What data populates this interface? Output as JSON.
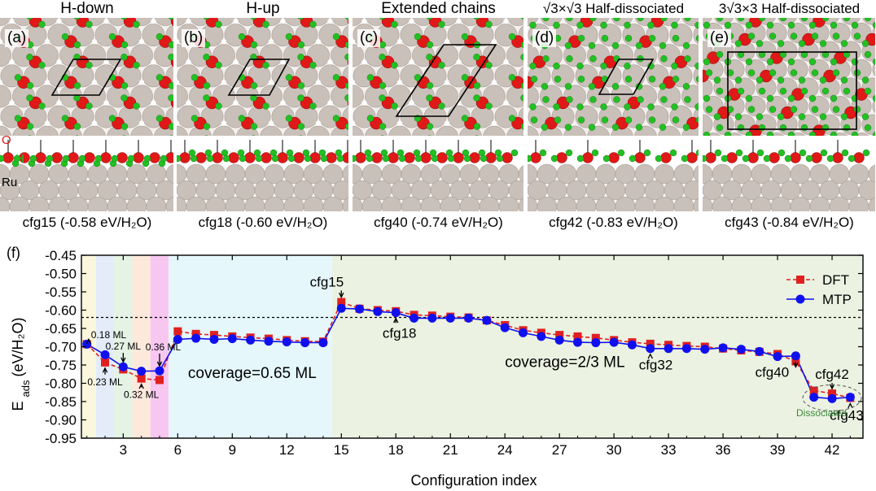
{
  "panels": [
    {
      "letter": "(a)",
      "title": "H-down",
      "caption": "cfg15 (-0.58 eV/H₂O)"
    },
    {
      "letter": "(b)",
      "title": "H-up",
      "caption": "cfg18 (-0.60 eV/H₂O)"
    },
    {
      "letter": "(c)",
      "title": "Extended chains",
      "caption": "cfg40 (-0.74 eV/H₂O)"
    },
    {
      "letter": "(d)",
      "title": "√3×√3 Half-dissociated",
      "caption": "cfg42 (-0.83 eV/H₂O)"
    },
    {
      "letter": "(e)",
      "title": "3√3×3 Half-dissociated",
      "caption": "cfg43 (-0.84 eV/H₂O)"
    }
  ],
  "atom_labels": {
    "o": "O",
    "h": "H",
    "ru": "Ru"
  },
  "colors": {
    "ru": "#c9c0b9",
    "o": "#e01818",
    "h": "#22c022",
    "dft": "#e02020",
    "mtp": "#1010ee"
  },
  "chart_data": {
    "type": "line",
    "panel_label": "(f)",
    "xlabel": "Configuration index",
    "ylabel": "E_ads (eV/H₂O)",
    "xlim": [
      0.7,
      43.7
    ],
    "ylim": [
      -0.95,
      -0.45
    ],
    "xticks": [
      3,
      6,
      9,
      12,
      15,
      18,
      21,
      24,
      27,
      30,
      33,
      36,
      39,
      42
    ],
    "yticks": [
      -0.45,
      -0.5,
      -0.55,
      -0.6,
      -0.65,
      -0.7,
      -0.75,
      -0.8,
      -0.85,
      -0.9,
      -0.95
    ],
    "x": [
      1,
      2,
      3,
      4,
      5,
      6,
      7,
      8,
      9,
      10,
      11,
      12,
      13,
      14,
      15,
      16,
      17,
      18,
      19,
      20,
      21,
      22,
      23,
      24,
      25,
      26,
      27,
      28,
      29,
      30,
      31,
      32,
      33,
      34,
      35,
      36,
      37,
      38,
      39,
      40,
      41,
      42,
      43
    ],
    "series": [
      {
        "name": "DFT",
        "values": [
          -0.693,
          -0.743,
          -0.762,
          -0.787,
          -0.791,
          -0.658,
          -0.665,
          -0.668,
          -0.672,
          -0.675,
          -0.678,
          -0.682,
          -0.685,
          -0.686,
          -0.578,
          -0.596,
          -0.6,
          -0.603,
          -0.613,
          -0.615,
          -0.618,
          -0.62,
          -0.628,
          -0.641,
          -0.655,
          -0.662,
          -0.668,
          -0.672,
          -0.676,
          -0.682,
          -0.688,
          -0.692,
          -0.695,
          -0.698,
          -0.7,
          -0.705,
          -0.71,
          -0.714,
          -0.72,
          -0.74,
          -0.82,
          -0.828,
          -0.84
        ]
      },
      {
        "name": "MTP",
        "values": [
          -0.693,
          -0.722,
          -0.755,
          -0.767,
          -0.766,
          -0.68,
          -0.677,
          -0.68,
          -0.678,
          -0.682,
          -0.685,
          -0.687,
          -0.689,
          -0.689,
          -0.595,
          -0.597,
          -0.604,
          -0.607,
          -0.622,
          -0.622,
          -0.622,
          -0.622,
          -0.628,
          -0.648,
          -0.662,
          -0.672,
          -0.682,
          -0.688,
          -0.689,
          -0.688,
          -0.695,
          -0.705,
          -0.705,
          -0.705,
          -0.707,
          -0.703,
          -0.707,
          -0.713,
          -0.727,
          -0.725,
          -0.838,
          -0.842,
          -0.838
        ]
      }
    ],
    "reference_line": -0.62,
    "regions": [
      {
        "x0": 0.7,
        "x1": 1.5,
        "color": "#fbf7dc"
      },
      {
        "x0": 1.5,
        "x1": 2.5,
        "color": "#e4ecf9"
      },
      {
        "x0": 2.5,
        "x1": 3.5,
        "color": "#e4f3e4"
      },
      {
        "x0": 3.5,
        "x1": 4.5,
        "color": "#fde9dc"
      },
      {
        "x0": 4.5,
        "x1": 5.5,
        "color": "#f7c7f1"
      },
      {
        "x0": 5.5,
        "x1": 14.5,
        "color": "#e5f7fb"
      },
      {
        "x0": 14.5,
        "x1": 43.7,
        "color": "#ebf2e1"
      }
    ],
    "region_labels": [
      {
        "text": "coverage=0.65 ML",
        "x": 10.1,
        "y": -0.785
      },
      {
        "text": "coverage=2/3 ML",
        "x": 27.3,
        "y": -0.755
      }
    ],
    "annotations": [
      {
        "text": "cfg15",
        "x": 15,
        "y": -0.578,
        "tx": 14.2,
        "ty": -0.535
      },
      {
        "text": "cfg18",
        "x": 18,
        "y": -0.607,
        "tx": 18.2,
        "ty": -0.675
      },
      {
        "text": "cfg32",
        "x": 32,
        "y": -0.705,
        "tx": 32.3,
        "ty": -0.762
      },
      {
        "text": "cfg40",
        "x": 40,
        "y": -0.74,
        "tx": 38.7,
        "ty": -0.782
      },
      {
        "text": "cfg42",
        "x": 42,
        "y": -0.828,
        "tx": 42,
        "ty": -0.788
      },
      {
        "text": "cfg43",
        "x": 43,
        "y": -0.84,
        "tx": 42.8,
        "ty": -0.9
      }
    ],
    "coverage_labels": [
      {
        "text": "0.18 ML",
        "x": 1.1,
        "y": -0.693,
        "tx": 2.2,
        "ty": -0.677
      },
      {
        "text": "0.23 ML",
        "x": 2,
        "y": -0.743,
        "tx": 2.0,
        "ty": -0.805
      },
      {
        "text": "0.27 ML",
        "x": 3,
        "y": -0.755,
        "tx": 3.0,
        "ty": -0.708
      },
      {
        "text": "0.32 ML",
        "x": 4,
        "y": -0.787,
        "tx": 4.0,
        "ty": -0.84
      },
      {
        "text": "0.36 ML",
        "x": 5,
        "y": -0.766,
        "tx": 5.2,
        "ty": -0.71
      }
    ],
    "dissociated_label": "Dissociated",
    "legend_position": "top-right"
  }
}
